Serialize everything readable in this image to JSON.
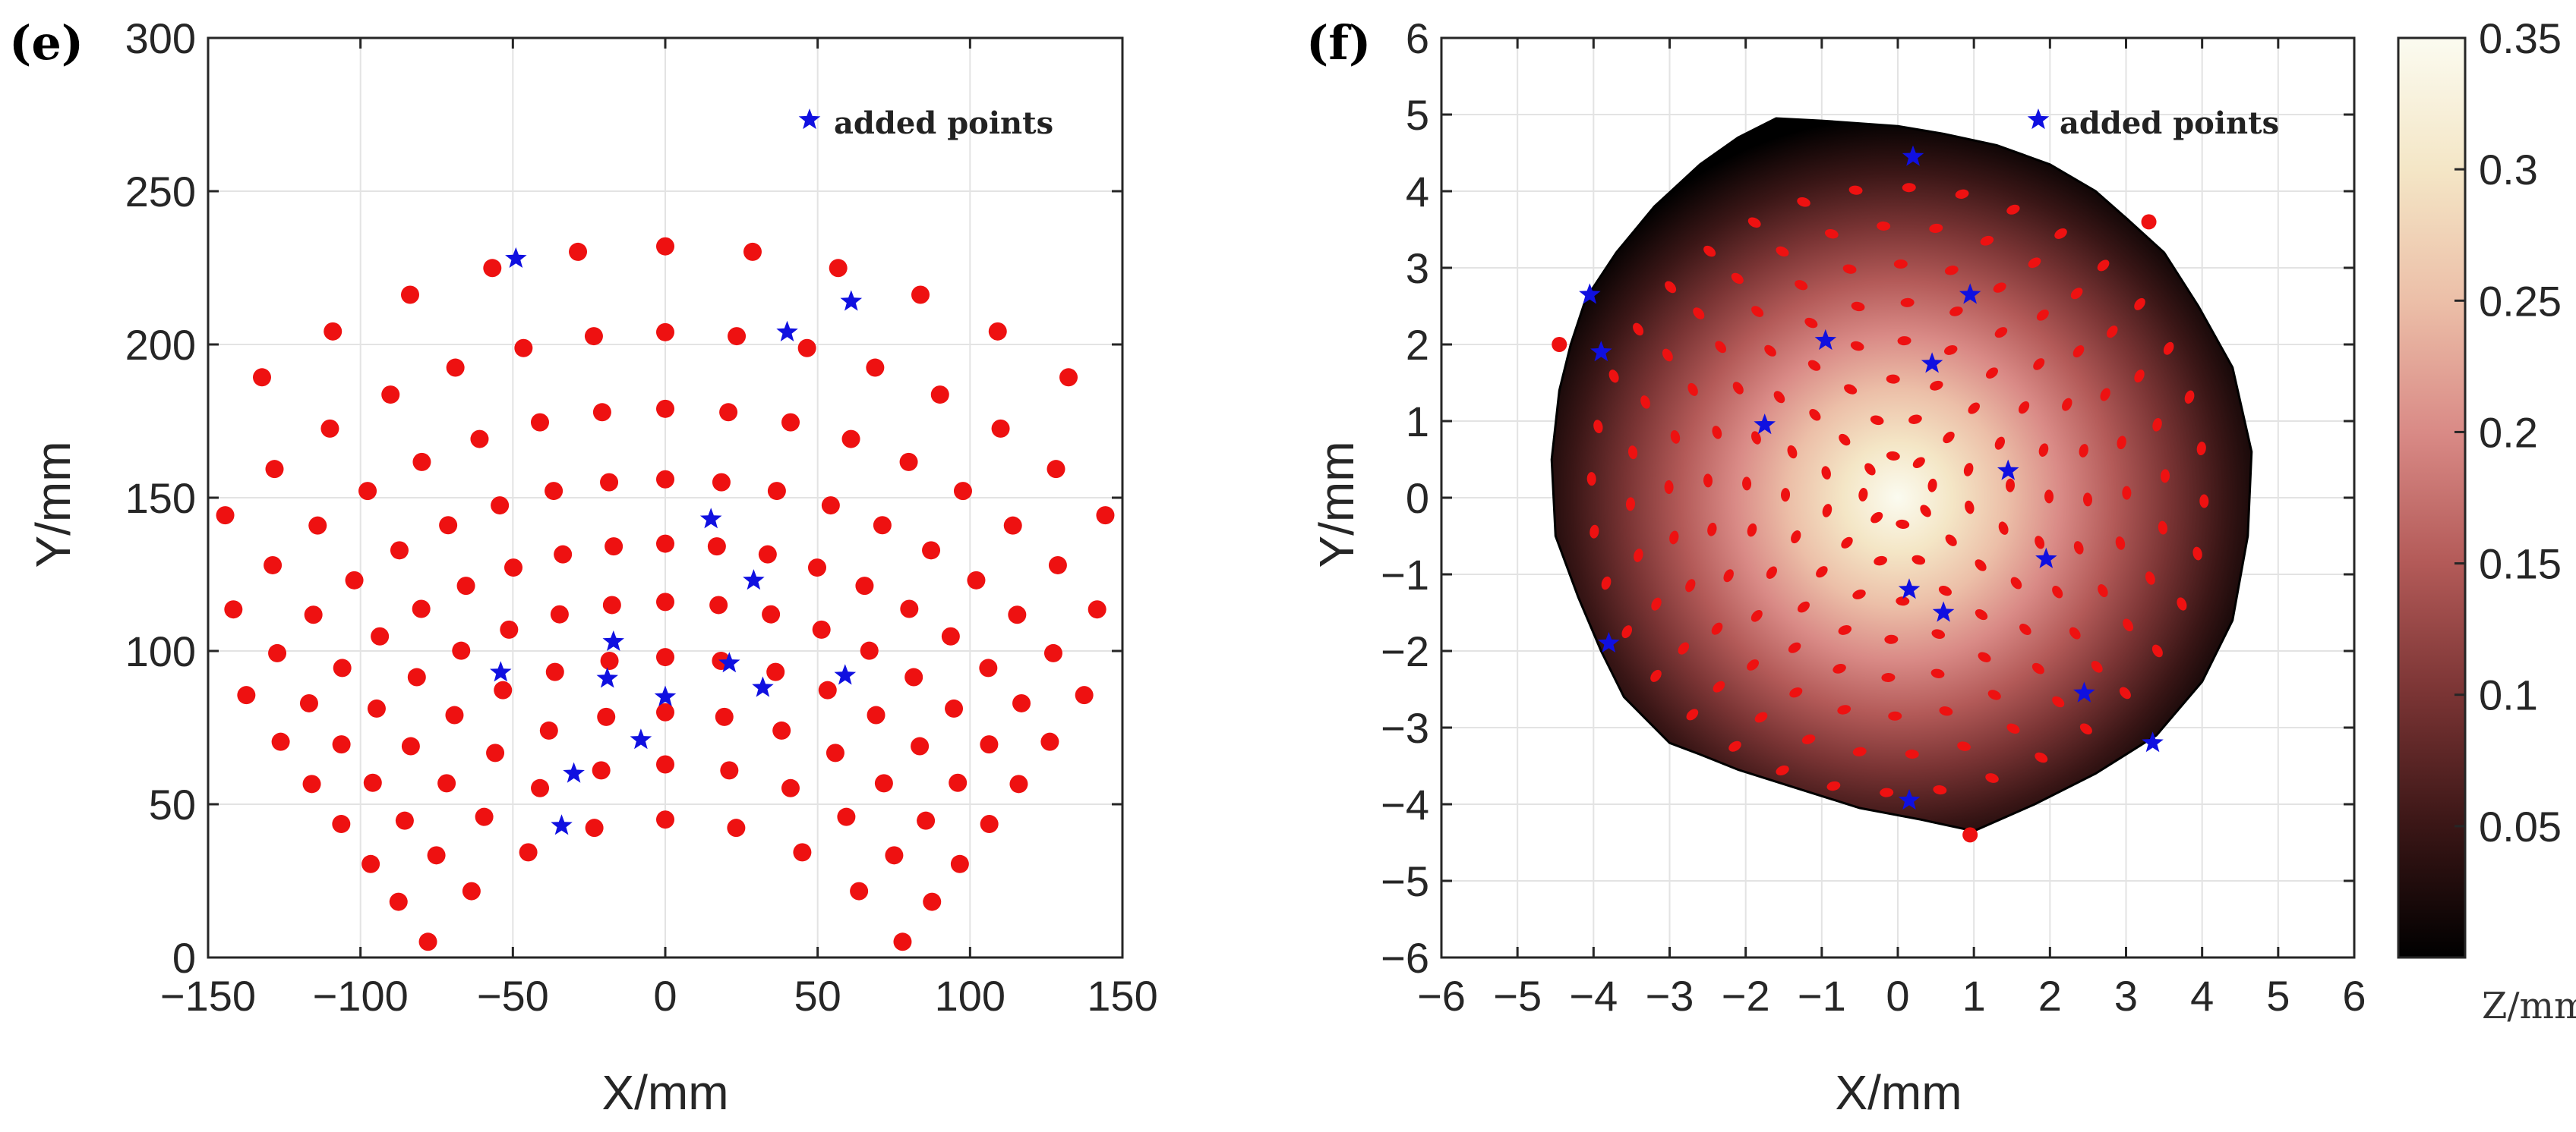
{
  "chart_data": [
    {
      "panel": "(e)",
      "type": "scatter",
      "xlabel": "X/mm",
      "ylabel": "Y/mm",
      "xlim": [
        -150,
        150
      ],
      "ylim": [
        0,
        300
      ],
      "xticks": [
        -150,
        -100,
        -50,
        0,
        50,
        100,
        150
      ],
      "yticks": [
        0,
        50,
        100,
        150,
        200,
        250,
        300
      ],
      "xtick_labels": [
        "−150",
        "−100",
        "−50",
        "0",
        "50",
        "100",
        "150"
      ],
      "ytick_labels": [
        "0",
        "50",
        "100",
        "150",
        "200",
        "250",
        "300"
      ],
      "grid": true,
      "legend": {
        "label": "added points",
        "marker": "star",
        "color": "#1010e0",
        "placement": "top-right"
      },
      "colors": {
        "measured": "#ee1111",
        "added": "#1010e0"
      },
      "measured_arcs": [
        {
          "y_center": 45,
          "half_angle_deg": 60,
          "count": 9
        },
        {
          "y_center": 63,
          "half_angle_deg": 60,
          "count": 11
        },
        {
          "y_center": 80,
          "half_angle_deg": 60,
          "count": 13
        },
        {
          "y_center": 98,
          "half_angle_deg": 60,
          "count": 15
        },
        {
          "y_center": 116,
          "half_angle_deg": 60,
          "count": 17
        },
        {
          "y_center": 135,
          "half_angle_deg": 60,
          "count": 19
        },
        {
          "y_center": 156,
          "half_angle_deg": 60,
          "count": 19
        },
        {
          "y_center": 179,
          "half_angle_deg": 55,
          "count": 17
        },
        {
          "y_center": 204,
          "half_angle_deg": 50,
          "count": 15
        },
        {
          "y_center": 232,
          "half_angle_deg": 40,
          "count": 11
        }
      ],
      "arc_origin": [
        0,
        -100
      ],
      "added_points": [
        [
          -49,
          228
        ],
        [
          61,
          214
        ],
        [
          40,
          204
        ],
        [
          15,
          143
        ],
        [
          29,
          123
        ],
        [
          -17,
          103
        ],
        [
          -54,
          93
        ],
        [
          -19,
          91
        ],
        [
          21,
          96
        ],
        [
          32,
          88
        ],
        [
          59,
          92
        ],
        [
          0,
          85
        ],
        [
          -8,
          71
        ],
        [
          -30,
          60
        ],
        [
          -34,
          43
        ]
      ]
    },
    {
      "panel": "(f)",
      "type": "heatmap",
      "xlabel": "X/mm",
      "ylabel": "Y/mm",
      "xlim": [
        -6,
        6
      ],
      "ylim": [
        -6,
        6
      ],
      "xticks": [
        -6,
        -5,
        -4,
        -3,
        -2,
        -1,
        0,
        1,
        2,
        3,
        4,
        5,
        6
      ],
      "yticks": [
        -6,
        -5,
        -4,
        -3,
        -2,
        -1,
        0,
        1,
        2,
        3,
        4,
        5,
        6
      ],
      "xtick_labels": [
        "−6",
        "−5",
        "−4",
        "−3",
        "−2",
        "−1",
        "0",
        "1",
        "2",
        "3",
        "4",
        "5",
        "6"
      ],
      "ytick_labels": [
        "−6",
        "−5",
        "−4",
        "−3",
        "−2",
        "−1",
        "0",
        "1",
        "2",
        "3",
        "4",
        "5",
        "6"
      ],
      "grid": true,
      "legend": {
        "label": "added points",
        "marker": "star",
        "color": "#1010e0",
        "placement": "top-right"
      },
      "colorbar": {
        "label": "Z/mm",
        "range": [
          0.0,
          0.35
        ],
        "ticks": [
          0.05,
          0.1,
          0.15,
          0.2,
          0.25,
          0.3,
          0.35
        ],
        "tick_labels": [
          "0.05",
          "0.1",
          "0.15",
          "0.2",
          "0.25",
          "0.3",
          "0.35"
        ],
        "colormap": [
          "#000000",
          "#3a1616",
          "#7a3434",
          "#b35a58",
          "#d98a86",
          "#ecbfa8",
          "#f4e6c6",
          "#fbfbf0"
        ]
      },
      "surface_peak": {
        "x": 0.0,
        "y": 0.0,
        "z": 0.35
      },
      "boundary": [
        [
          -1.6,
          4.95
        ],
        [
          -1.0,
          4.92
        ],
        [
          0.0,
          4.85
        ],
        [
          0.6,
          4.75
        ],
        [
          1.3,
          4.6
        ],
        [
          2.0,
          4.35
        ],
        [
          2.6,
          4.0
        ],
        [
          3.0,
          3.65
        ],
        [
          3.5,
          3.2
        ],
        [
          3.95,
          2.5
        ],
        [
          4.4,
          1.7
        ],
        [
          4.65,
          0.6
        ],
        [
          4.6,
          -0.5
        ],
        [
          4.4,
          -1.6
        ],
        [
          4.0,
          -2.4
        ],
        [
          3.4,
          -3.1
        ],
        [
          2.6,
          -3.6
        ],
        [
          1.8,
          -4.0
        ],
        [
          1.0,
          -4.35
        ],
        [
          0.3,
          -4.2
        ],
        [
          -0.5,
          -4.05
        ],
        [
          -1.3,
          -3.8
        ],
        [
          -2.1,
          -3.55
        ],
        [
          -2.6,
          -3.35
        ],
        [
          -3.0,
          -3.2
        ],
        [
          -3.6,
          -2.6
        ],
        [
          -3.9,
          -2.0
        ],
        [
          -4.2,
          -1.3
        ],
        [
          -4.5,
          -0.5
        ],
        [
          -4.55,
          0.5
        ],
        [
          -4.45,
          1.4
        ],
        [
          -4.3,
          2.0
        ],
        [
          -4.1,
          2.6
        ],
        [
          -3.7,
          3.2
        ],
        [
          -3.2,
          3.8
        ],
        [
          -2.6,
          4.35
        ],
        [
          -2.1,
          4.7
        ]
      ],
      "measured_rings": [
        {
          "radius": 0.45,
          "count": 8
        },
        {
          "radius": 0.95,
          "count": 12
        },
        {
          "radius": 1.45,
          "count": 16
        },
        {
          "radius": 1.95,
          "count": 20
        },
        {
          "radius": 2.45,
          "count": 24
        },
        {
          "radius": 2.95,
          "count": 28
        },
        {
          "radius": 3.45,
          "count": 32
        },
        {
          "radius": 3.95,
          "count": 36
        }
      ],
      "extra_measured": [
        [
          3.3,
          3.6
        ],
        [
          -4.45,
          2.0
        ],
        [
          0.95,
          -4.4
        ]
      ],
      "added_points": [
        [
          0.2,
          4.45
        ],
        [
          -4.05,
          2.65
        ],
        [
          -3.9,
          1.9
        ],
        [
          0.95,
          2.65
        ],
        [
          -0.95,
          2.05
        ],
        [
          0.45,
          1.75
        ],
        [
          -1.75,
          0.95
        ],
        [
          1.45,
          0.35
        ],
        [
          1.95,
          -0.8
        ],
        [
          0.15,
          -1.2
        ],
        [
          0.6,
          -1.5
        ],
        [
          -3.8,
          -1.9
        ],
        [
          2.45,
          -2.55
        ],
        [
          3.35,
          -3.2
        ],
        [
          0.15,
          -3.95
        ]
      ]
    }
  ]
}
